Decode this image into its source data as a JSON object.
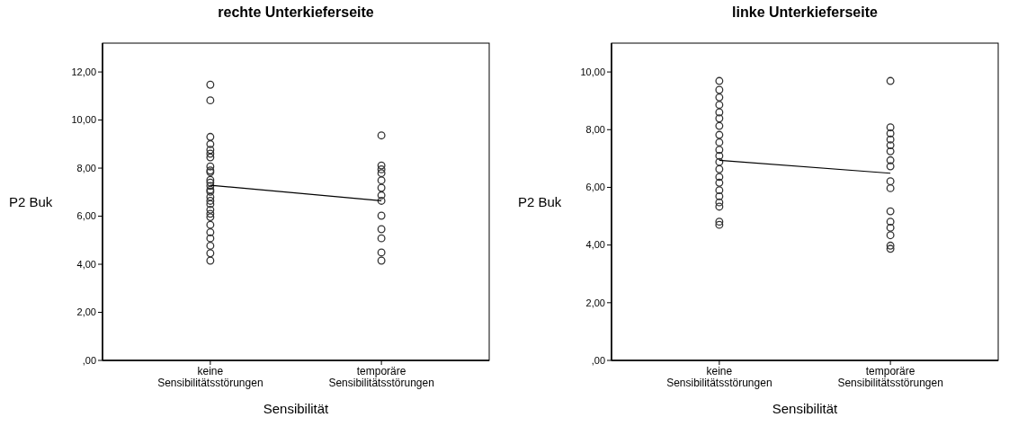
{
  "chart_data": [
    {
      "type": "scatter",
      "title": "rechte Unterkieferseite",
      "xlabel": "Sensibilität",
      "ylabel": "P2 Buk",
      "categories": [
        "keine Sensibilitätsstörungen",
        "temporäre Sensibilitätsstörungen"
      ],
      "ylim": [
        0,
        13.2
      ],
      "yticks": [
        {
          "value": 0,
          "label": ",00"
        },
        {
          "value": 2,
          "label": "2,00"
        },
        {
          "value": 4,
          "label": "4,00"
        },
        {
          "value": 6,
          "label": "6,00"
        },
        {
          "value": 8,
          "label": "8,00"
        },
        {
          "value": 10,
          "label": "10,00"
        },
        {
          "value": 12,
          "label": "12,00"
        }
      ],
      "marker": "circle",
      "series": [
        {
          "color": "#333333",
          "x": [
            "keine Sensibilitätsstörungen",
            "keine Sensibilitätsstörungen",
            "keine Sensibilitätsstörungen",
            "keine Sensibilitätsstörungen",
            "keine Sensibilitätsstörungen",
            "keine Sensibilitätsstörungen",
            "keine Sensibilitätsstörungen",
            "keine Sensibilitätsstörungen",
            "keine Sensibilitätsstörungen",
            "keine Sensibilitätsstörungen",
            "keine Sensibilitätsstörungen",
            "keine Sensibilitätsstörungen",
            "keine Sensibilitätsstörungen",
            "keine Sensibilitätsstörungen",
            "keine Sensibilitätsstörungen",
            "keine Sensibilitätsstörungen",
            "keine Sensibilitätsstörungen",
            "keine Sensibilitätsstörungen",
            "keine Sensibilitätsstörungen",
            "keine Sensibilitätsstörungen",
            "keine Sensibilitätsstörungen",
            "keine Sensibilitätsstörungen",
            "keine Sensibilitätsstörungen",
            "keine Sensibilitätsstörungen",
            "keine Sensibilitätsstörungen",
            "keine Sensibilitätsstörungen",
            "keine Sensibilitätsstörungen",
            "temporäre Sensibilitätsstörungen",
            "temporäre Sensibilitätsstörungen",
            "temporäre Sensibilitätsstörungen",
            "temporäre Sensibilitätsstörungen",
            "temporäre Sensibilitätsstörungen",
            "temporäre Sensibilitätsstörungen",
            "temporäre Sensibilitätsstörungen",
            "temporäre Sensibilitätsstörungen",
            "temporäre Sensibilitätsstörungen",
            "temporäre Sensibilitätsstörungen",
            "temporäre Sensibilitätsstörungen",
            "temporäre Sensibilitätsstörungen",
            "temporäre Sensibilitätsstörungen"
          ],
          "values": [
            11.47,
            10.82,
            9.3,
            9.0,
            8.76,
            8.6,
            8.45,
            8.07,
            7.9,
            7.83,
            7.51,
            7.4,
            7.26,
            7.1,
            7.02,
            6.8,
            6.64,
            6.5,
            6.27,
            6.1,
            5.96,
            5.64,
            5.33,
            5.08,
            4.77,
            4.46,
            4.15,
            9.36,
            8.11,
            7.95,
            7.79,
            7.49,
            7.18,
            6.87,
            6.64,
            6.02,
            5.46,
            5.08,
            4.49,
            4.15
          ]
        },
        {
          "type": "line",
          "marker": "none",
          "color": "#000000",
          "values": [
            7.29,
            6.64
          ]
        }
      ]
    },
    {
      "type": "scatter",
      "title": "linke Unterkieferseite",
      "xlabel": "Sensibilität",
      "ylabel": "P2 Buk",
      "categories": [
        "keine Sensibilitätsstörungen",
        "temporäre Sensibilitätsstörungen"
      ],
      "ylim": [
        0,
        11
      ],
      "yticks": [
        {
          "value": 0,
          "label": ",00"
        },
        {
          "value": 2,
          "label": "2,00"
        },
        {
          "value": 4,
          "label": "4,00"
        },
        {
          "value": 6,
          "label": "6,00"
        },
        {
          "value": 8,
          "label": "8,00"
        },
        {
          "value": 10,
          "label": "10,00"
        }
      ],
      "marker": "circle",
      "series": [
        {
          "color": "#333333",
          "x": [
            "keine Sensibilitätsstörungen",
            "keine Sensibilitätsstörungen",
            "keine Sensibilitätsstörungen",
            "keine Sensibilitätsstörungen",
            "keine Sensibilitätsstörungen",
            "keine Sensibilitätsstörungen",
            "keine Sensibilitätsstörungen",
            "keine Sensibilitätsstörungen",
            "keine Sensibilitätsstörungen",
            "keine Sensibilitätsstörungen",
            "keine Sensibilitätsstörungen",
            "keine Sensibilitätsstörungen",
            "keine Sensibilitätsstörungen",
            "keine Sensibilitätsstörungen",
            "keine Sensibilitätsstörungen",
            "keine Sensibilitätsstörungen",
            "keine Sensibilitätsstörungen",
            "keine Sensibilitätsstörungen",
            "keine Sensibilitätsstörungen",
            "keine Sensibilitätsstörungen",
            "keine Sensibilitätsstörungen",
            "temporäre Sensibilitätsstörungen",
            "temporäre Sensibilitätsstörungen",
            "temporäre Sensibilitätsstörungen",
            "temporäre Sensibilitätsstörungen",
            "temporäre Sensibilitätsstörungen",
            "temporäre Sensibilitätsstörungen",
            "temporäre Sensibilitätsstörungen",
            "temporäre Sensibilitätsstörungen",
            "temporäre Sensibilitätsstörungen",
            "temporäre Sensibilitätsstörungen",
            "temporäre Sensibilitätsstörungen",
            "temporäre Sensibilitätsstörungen",
            "temporäre Sensibilitätsstörungen",
            "temporäre Sensibilitätsstörungen",
            "temporäre Sensibilitätsstörungen",
            "temporäre Sensibilitätsstörungen"
          ],
          "values": [
            9.69,
            9.38,
            9.12,
            8.86,
            8.6,
            8.39,
            8.13,
            7.82,
            7.56,
            7.3,
            7.09,
            6.88,
            6.63,
            6.36,
            6.16,
            5.9,
            5.69,
            5.48,
            5.33,
            4.81,
            4.7,
            9.69,
            8.08,
            7.87,
            7.66,
            7.46,
            7.25,
            6.94,
            6.73,
            6.21,
            5.97,
            5.17,
            4.81,
            4.6,
            4.34,
            3.98,
            3.87
          ]
        },
        {
          "type": "line",
          "marker": "none",
          "color": "#000000",
          "values": [
            6.94,
            6.49
          ]
        }
      ]
    }
  ]
}
